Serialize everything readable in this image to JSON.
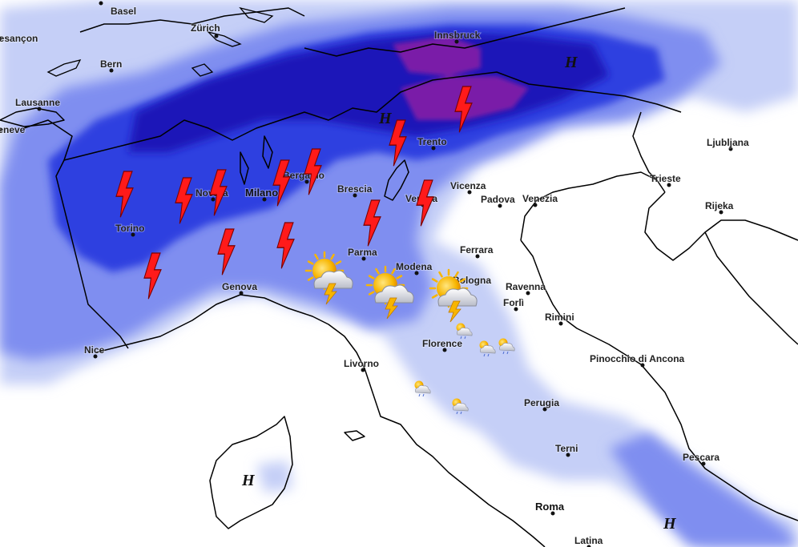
{
  "map": {
    "layer": "precipitation",
    "colors": {
      "rain_light": "#c5cff7",
      "rain_moderate": "#7f8ef0",
      "rain_heavy": "#2f3fe0",
      "rain_very_heavy": "#1a14b8",
      "rain_extreme": "#7a1fa8",
      "coastline": "#000000",
      "lightning": "#ff1a1a",
      "sun": "#f7b500"
    }
  },
  "cities": [
    {
      "name": "Basel",
      "size": "normal"
    },
    {
      "name": "Zürich",
      "size": "normal"
    },
    {
      "name": "Innsbruck",
      "size": "normal"
    },
    {
      "name": "Bern",
      "size": "normal"
    },
    {
      "name": "Lausanne",
      "size": "normal"
    },
    {
      "name": "Trento",
      "size": "normal"
    },
    {
      "name": "Ljubljana",
      "size": "normal"
    },
    {
      "name": "Bergamo",
      "size": "normal"
    },
    {
      "name": "Milano",
      "size": "big"
    },
    {
      "name": "Novara",
      "size": "normal"
    },
    {
      "name": "Brescia",
      "size": "normal"
    },
    {
      "name": "Verona",
      "size": "normal"
    },
    {
      "name": "Vicenza",
      "size": "normal"
    },
    {
      "name": "Padova",
      "size": "normal"
    },
    {
      "name": "Venezia",
      "size": "normal"
    },
    {
      "name": "Trieste",
      "size": "normal"
    },
    {
      "name": "Rijeka",
      "size": "normal"
    },
    {
      "name": "Torino",
      "size": "normal"
    },
    {
      "name": "Parma",
      "size": "normal"
    },
    {
      "name": "Modena",
      "size": "normal"
    },
    {
      "name": "Bologna",
      "size": "normal"
    },
    {
      "name": "Ferrara",
      "size": "normal"
    },
    {
      "name": "Ravenna",
      "size": "normal"
    },
    {
      "name": "Forlì",
      "size": "normal"
    },
    {
      "name": "Rimini",
      "size": "normal"
    },
    {
      "name": "Genova",
      "size": "normal"
    },
    {
      "name": "Nice",
      "size": "normal"
    },
    {
      "name": "Livorno",
      "size": "normal"
    },
    {
      "name": "Florence",
      "size": "normal"
    },
    {
      "name": "Pinocchio di Ancona",
      "size": "normal"
    },
    {
      "name": "Perugia",
      "size": "normal"
    },
    {
      "name": "Terni",
      "size": "normal"
    },
    {
      "name": "Pescara",
      "size": "normal"
    },
    {
      "name": "Roma",
      "size": "big"
    },
    {
      "name": "Latina",
      "size": "normal"
    },
    {
      "name": "Geneve",
      "size": "normal"
    },
    {
      "name": "Besançon",
      "size": "normal"
    }
  ],
  "pressure_labels": [
    "H",
    "H",
    "H",
    "H"
  ],
  "symbols": {
    "lightning_count": 14,
    "thunderstorm_sun_count": 3,
    "small_shower_count": 5
  }
}
